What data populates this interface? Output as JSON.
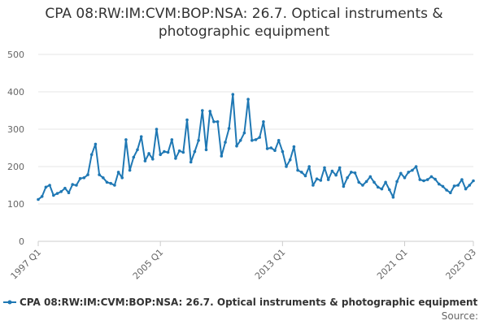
{
  "title": {
    "line1": "CPA 08:RW:IM:CVM:BOP:NSA: 26.7. Optical instruments &",
    "line2": "photographic equipment"
  },
  "source_label": "Source:",
  "chart_data": {
    "type": "line",
    "title": "CPA 08:RW:IM:CVM:BOP:NSA: 26.7. Optical instruments & photographic equipment",
    "xlabel": "",
    "ylabel": "",
    "ylim": [
      0,
      500
    ],
    "y_ticks": [
      0,
      100,
      200,
      300,
      400,
      500
    ],
    "x_tick_labels": [
      "1997 Q1",
      "2005 Q1",
      "2013 Q1",
      "2021 Q1",
      "2025 Q3"
    ],
    "grid": true,
    "legend_position": "bottom",
    "series_color": "#1f78b4",
    "x": [
      "1997 Q1",
      "1997 Q2",
      "1997 Q3",
      "1997 Q4",
      "1998 Q1",
      "1998 Q2",
      "1998 Q3",
      "1998 Q4",
      "1999 Q1",
      "1999 Q2",
      "1999 Q3",
      "1999 Q4",
      "2000 Q1",
      "2000 Q2",
      "2000 Q3",
      "2000 Q4",
      "2001 Q1",
      "2001 Q2",
      "2001 Q3",
      "2001 Q4",
      "2002 Q1",
      "2002 Q2",
      "2002 Q3",
      "2002 Q4",
      "2003 Q1",
      "2003 Q2",
      "2003 Q3",
      "2003 Q4",
      "2004 Q1",
      "2004 Q2",
      "2004 Q3",
      "2004 Q4",
      "2005 Q1",
      "2005 Q2",
      "2005 Q3",
      "2005 Q4",
      "2006 Q1",
      "2006 Q2",
      "2006 Q3",
      "2006 Q4",
      "2007 Q1",
      "2007 Q2",
      "2007 Q3",
      "2007 Q4",
      "2008 Q1",
      "2008 Q2",
      "2008 Q3",
      "2008 Q4",
      "2009 Q1",
      "2009 Q2",
      "2009 Q3",
      "2009 Q4",
      "2010 Q1",
      "2010 Q2",
      "2010 Q3",
      "2010 Q4",
      "2011 Q1",
      "2011 Q2",
      "2011 Q3",
      "2011 Q4",
      "2012 Q1",
      "2012 Q2",
      "2012 Q3",
      "2012 Q4",
      "2013 Q1",
      "2013 Q2",
      "2013 Q3",
      "2013 Q4",
      "2014 Q1",
      "2014 Q2",
      "2014 Q3",
      "2014 Q4",
      "2015 Q1",
      "2015 Q2",
      "2015 Q3",
      "2015 Q4",
      "2016 Q1",
      "2016 Q2",
      "2016 Q3",
      "2016 Q4",
      "2017 Q1",
      "2017 Q2",
      "2017 Q3",
      "2017 Q4",
      "2018 Q1",
      "2018 Q2",
      "2018 Q3",
      "2018 Q4",
      "2019 Q1",
      "2019 Q2",
      "2019 Q3",
      "2019 Q4",
      "2020 Q1",
      "2020 Q2",
      "2020 Q3",
      "2020 Q4",
      "2021 Q1",
      "2021 Q2",
      "2021 Q3",
      "2021 Q4",
      "2022 Q1",
      "2022 Q2",
      "2022 Q3",
      "2022 Q4",
      "2023 Q1",
      "2023 Q2",
      "2023 Q3",
      "2023 Q4",
      "2024 Q1",
      "2024 Q2",
      "2024 Q3",
      "2024 Q4",
      "2025 Q1",
      "2025 Q2",
      "2025 Q3"
    ],
    "series": [
      {
        "name": "CPA 08:RW:IM:CVM:BOP:NSA: 26.7. Optical instruments & photographic equipment",
        "values": [
          112,
          120,
          145,
          150,
          123,
          128,
          133,
          142,
          130,
          152,
          150,
          168,
          170,
          178,
          232,
          260,
          178,
          170,
          158,
          155,
          150,
          185,
          170,
          272,
          190,
          225,
          245,
          280,
          215,
          235,
          220,
          300,
          232,
          240,
          238,
          272,
          222,
          242,
          238,
          325,
          212,
          240,
          270,
          350,
          245,
          348,
          320,
          320,
          228,
          265,
          302,
          393,
          255,
          270,
          290,
          380,
          270,
          272,
          278,
          320,
          248,
          250,
          243,
          270,
          240,
          200,
          218,
          253,
          190,
          185,
          175,
          200,
          150,
          167,
          163,
          197,
          165,
          188,
          177,
          197,
          147,
          170,
          185,
          183,
          158,
          150,
          160,
          173,
          158,
          145,
          140,
          158,
          138,
          118,
          160,
          182,
          170,
          185,
          190,
          200,
          165,
          162,
          165,
          173,
          166,
          153,
          147,
          137,
          130,
          148,
          150,
          165,
          140,
          150,
          162
        ]
      }
    ]
  }
}
